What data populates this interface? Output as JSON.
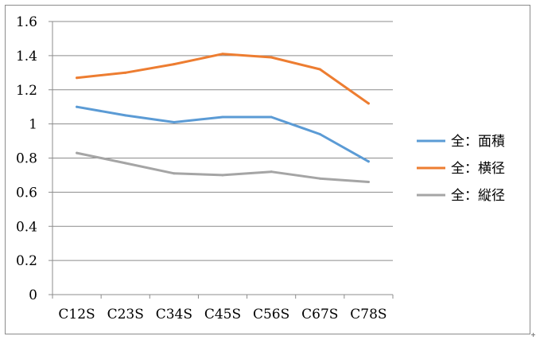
{
  "chart_data": {
    "type": "line",
    "title": "",
    "xlabel": "",
    "ylabel": "",
    "categories": [
      "C12S",
      "C23S",
      "C34S",
      "C45S",
      "C56S",
      "C67S",
      "C78S"
    ],
    "ylim": [
      0,
      1.6
    ],
    "yticks": [
      "0",
      "0.2",
      "0.4",
      "0.6",
      "0.8",
      "1",
      "1.2",
      "1.4",
      "1.6"
    ],
    "grid": true,
    "legend_position": "right",
    "series": [
      {
        "name": "全：面積",
        "color": "#5b9bd5",
        "values": [
          1.1,
          1.05,
          1.01,
          1.04,
          1.04,
          0.94,
          0.78
        ]
      },
      {
        "name": "全：横径",
        "color": "#ed7d31",
        "values": [
          1.27,
          1.3,
          1.35,
          1.41,
          1.39,
          1.32,
          1.12
        ]
      },
      {
        "name": "全：縦径",
        "color": "#a5a5a5",
        "values": [
          0.83,
          0.77,
          0.71,
          0.7,
          0.72,
          0.68,
          0.66
        ]
      }
    ]
  }
}
